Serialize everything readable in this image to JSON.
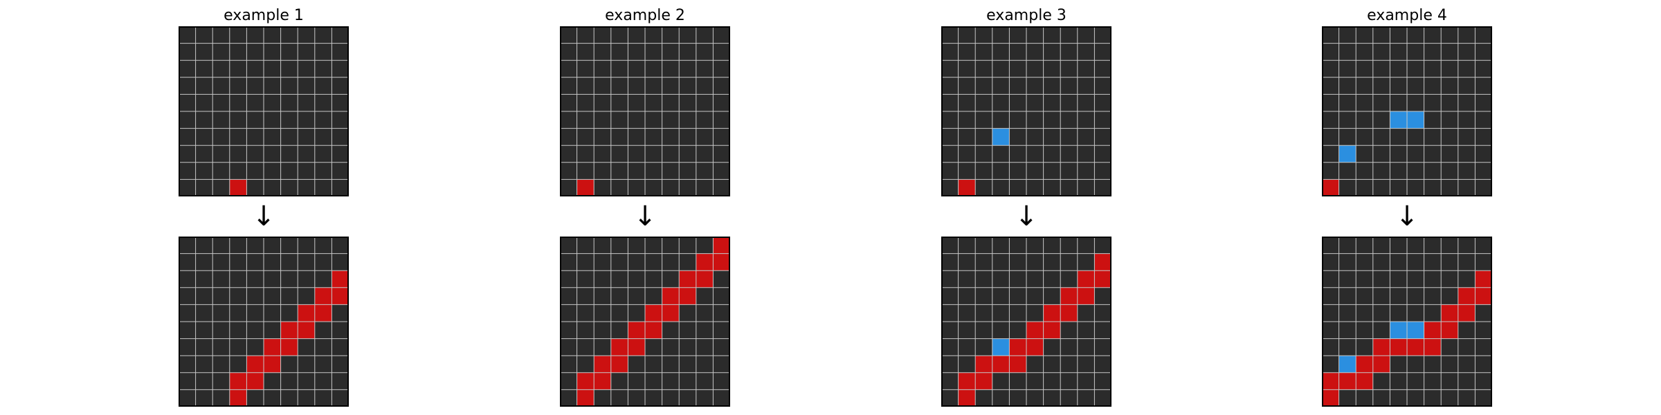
{
  "arrow_symbol": "↓",
  "colors": {
    "background": "#2b2b2b",
    "grid_line": "#c8c8c8",
    "border": "#000000",
    "red": "#cc1111",
    "blue": "#2b8fe0"
  },
  "grid_size": 10,
  "examples": [
    {
      "title": "example 1",
      "input": {
        "red": [
          [
            9,
            3
          ]
        ],
        "blue": []
      },
      "output": {
        "red": [
          [
            2,
            9
          ],
          [
            3,
            8
          ],
          [
            3,
            9
          ],
          [
            4,
            7
          ],
          [
            4,
            8
          ],
          [
            5,
            6
          ],
          [
            5,
            7
          ],
          [
            6,
            5
          ],
          [
            6,
            6
          ],
          [
            7,
            4
          ],
          [
            7,
            5
          ],
          [
            8,
            3
          ],
          [
            8,
            4
          ],
          [
            9,
            3
          ]
        ],
        "blue": []
      }
    },
    {
      "title": "example 2",
      "input": {
        "red": [
          [
            9,
            1
          ]
        ],
        "blue": []
      },
      "output": {
        "red": [
          [
            0,
            9
          ],
          [
            1,
            8
          ],
          [
            1,
            9
          ],
          [
            2,
            7
          ],
          [
            2,
            8
          ],
          [
            3,
            6
          ],
          [
            3,
            7
          ],
          [
            4,
            5
          ],
          [
            4,
            6
          ],
          [
            5,
            4
          ],
          [
            5,
            5
          ],
          [
            6,
            3
          ],
          [
            6,
            4
          ],
          [
            7,
            2
          ],
          [
            7,
            3
          ],
          [
            8,
            1
          ],
          [
            8,
            2
          ],
          [
            9,
            1
          ]
        ],
        "blue": []
      }
    },
    {
      "title": "example 3",
      "input": {
        "red": [
          [
            9,
            1
          ]
        ],
        "blue": [
          [
            6,
            3
          ]
        ]
      },
      "output": {
        "red": [
          [
            1,
            9
          ],
          [
            2,
            8
          ],
          [
            2,
            9
          ],
          [
            3,
            7
          ],
          [
            3,
            8
          ],
          [
            4,
            6
          ],
          [
            4,
            7
          ],
          [
            5,
            5
          ],
          [
            5,
            6
          ],
          [
            6,
            4
          ],
          [
            6,
            5
          ],
          [
            7,
            2
          ],
          [
            7,
            3
          ],
          [
            7,
            4
          ],
          [
            8,
            1
          ],
          [
            8,
            2
          ],
          [
            9,
            1
          ]
        ],
        "blue": [
          [
            6,
            3
          ]
        ]
      }
    },
    {
      "title": "example 4",
      "input": {
        "red": [
          [
            9,
            0
          ]
        ],
        "blue": [
          [
            5,
            4
          ],
          [
            5,
            5
          ],
          [
            7,
            1
          ]
        ]
      },
      "output": {
        "red": [
          [
            2,
            9
          ],
          [
            3,
            8
          ],
          [
            3,
            9
          ],
          [
            4,
            7
          ],
          [
            4,
            8
          ],
          [
            5,
            6
          ],
          [
            5,
            7
          ],
          [
            6,
            3
          ],
          [
            6,
            4
          ],
          [
            6,
            5
          ],
          [
            6,
            6
          ],
          [
            7,
            2
          ],
          [
            7,
            3
          ],
          [
            8,
            0
          ],
          [
            8,
            1
          ],
          [
            8,
            2
          ],
          [
            9,
            0
          ]
        ],
        "blue": [
          [
            5,
            4
          ],
          [
            5,
            5
          ],
          [
            7,
            1
          ]
        ]
      }
    }
  ]
}
